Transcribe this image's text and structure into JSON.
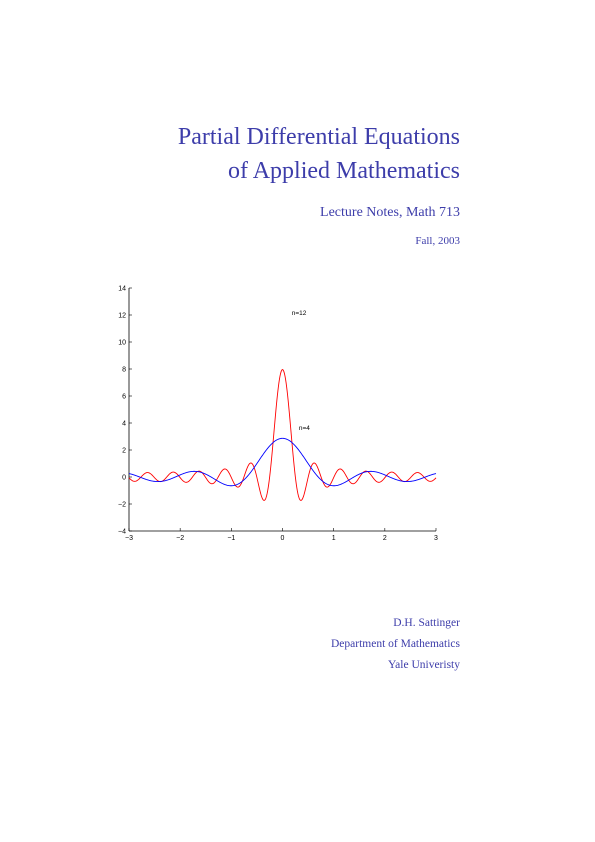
{
  "title": {
    "line1": "Partial Differential Equations",
    "line2": "of Applied Mathematics"
  },
  "subtitle": "Lecture Notes, Math 713",
  "date": "Fall, 2003",
  "author": {
    "name": "D.H. Sattinger",
    "department": "Department of Mathematics",
    "university": "Yale Univeristy"
  },
  "colors": {
    "text": "#3d3daa",
    "series_n12": "#ff0000",
    "series_n4": "#0000ff",
    "axis": "#000000"
  },
  "chart_data": {
    "type": "line",
    "title": "",
    "xlabel": "",
    "ylabel": "",
    "xlim": [
      -3,
      3
    ],
    "ylim": [
      -4,
      14
    ],
    "xticks": [
      -3,
      -2,
      -1,
      0,
      1,
      2,
      3
    ],
    "xtick_labels": [
      "−3",
      "−2",
      "−1",
      "0",
      "1",
      "2",
      "3"
    ],
    "yticks": [
      -4,
      -2,
      0,
      2,
      4,
      6,
      8,
      10,
      12,
      14
    ],
    "ytick_labels": [
      "−4",
      "−2",
      "0",
      "2",
      "4",
      "6",
      "8",
      "10",
      "12",
      "14"
    ],
    "grid": false,
    "series": [
      {
        "annotation": "n=12",
        "color": "#ff0000",
        "n": 12,
        "annotation_x": 0.18,
        "annotation_y": 12.0
      },
      {
        "annotation": "n=4",
        "color": "#0000ff",
        "n": 4,
        "annotation_x": 0.32,
        "annotation_y": 3.5
      }
    ]
  }
}
